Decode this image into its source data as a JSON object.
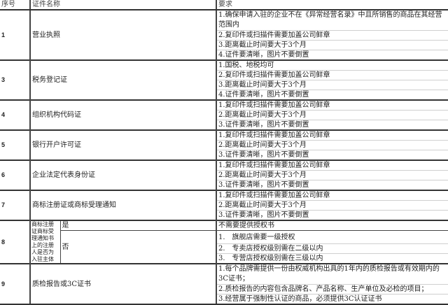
{
  "header": {
    "seq": "序号",
    "name": "证件名称",
    "req": "要求"
  },
  "rows": [
    {
      "seq": "1",
      "name": "营业执照",
      "reqs": [
        "1.确保申请入驻的企业不在《异常经营名录》中且所销售的商品在其经营范围内",
        "2.复印件或扫描件需要加盖公司鲜章",
        "3.距离截止时间要大于3个月",
        "4.证件要清晰，图片不要倒置"
      ]
    },
    {
      "seq": "3",
      "name": "税务登记证",
      "reqs": [
        "1.国税、地税均可",
        "2.复印件或扫描件需要加盖公司鲜章",
        "3.距离截止时间要大于3个月",
        "4.证件要清晰，图片不要倒置"
      ]
    },
    {
      "seq": "4",
      "name": "组织机构代码证",
      "reqs": [
        "1.复印件或扫描件需要加盖公司鲜章",
        "2.距离截止时间要大于3个月",
        "3.证件要清晰，图片不要倒置"
      ]
    },
    {
      "seq": "5",
      "name": "银行开户许可证",
      "reqs": [
        "1.复印件或扫描件需要加盖公司鲜章",
        "2.距离截止时间要大于3个月",
        "3.证件要清晰，图片不要倒置"
      ]
    },
    {
      "seq": "6",
      "name": "企业法定代表身份证",
      "reqs": [
        "1.复印件或扫描件需要加盖公司鲜章",
        "2.距离截止时间要大于3个月",
        "3.证件要清晰，图片不要倒置"
      ]
    },
    {
      "seq": "7",
      "name": "商标注册证或商标受理通知",
      "reqs": [
        "1.复印件或扫描件需要加盖公司鲜章",
        "2.距离截止时间要大于3个月",
        "3.证件要清晰，图片不要倒置"
      ]
    },
    {
      "seq": "8",
      "name": "商标注册证商标受理通知书上的注册人是否为入驻主体",
      "yes": "是",
      "yes_req": "不需要提供授权书",
      "no": "否",
      "no_reqs": [
        "1.　旗舰店需要一级授权",
        "2.　专卖店授权级别需在二级以内",
        "3.　专营店授权级别需在三级以内"
      ]
    },
    {
      "seq": "9",
      "name": "质检报告或3C证书",
      "reqs": [
        "1.每个品牌需提供一份由权威机构出具的1年内的质检报告或有效期内的3C证书；",
        "2.质检报告的内容包含品牌名、产品名称、生产单位及必检的项目；",
        "3.经营属于强制性认证的商品，必须提供3C认证证书"
      ]
    }
  ]
}
